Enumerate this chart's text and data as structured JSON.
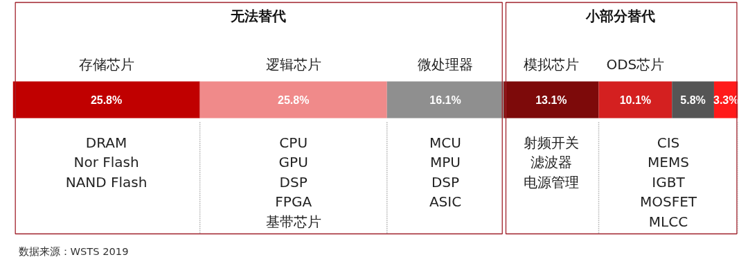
{
  "chart_data": {
    "type": "bar",
    "orientation": "horizontal",
    "stacked": true,
    "categories": [
      null
    ],
    "xlim": [
      0,
      100
    ],
    "tick_labels": false,
    "grid": false,
    "series": [
      {
        "name": "存储芯片",
        "color": "#c00000",
        "values": [
          25.8
        ],
        "value_labels": [
          "25.8%"
        ]
      },
      {
        "name": "逻辑芯片",
        "color": "#f08a8a",
        "values": [
          25.8
        ],
        "value_labels": [
          "25.8%"
        ]
      },
      {
        "name": "微处理器",
        "color": "#8f8f8f",
        "values": [
          16.1
        ],
        "value_labels": [
          "16.1%"
        ]
      },
      {
        "name": "模拟芯片",
        "color": "#7d0a0a",
        "values": [
          13.1
        ],
        "value_labels": [
          "13.1%"
        ]
      },
      {
        "name": "ODS芯片",
        "color": "#d42020",
        "values": [
          10.1
        ],
        "value_labels": [
          "10.1%"
        ]
      },
      {
        "color": "#555555",
        "values": [
          5.8
        ],
        "value_labels": [
          "5.8%"
        ]
      },
      {
        "color": "#ff1a1a",
        "values": [
          3.3
        ],
        "value_labels": [
          "3.3%"
        ]
      }
    ],
    "annotations": [
      "无法替代",
      "小部分替代",
      "DRAM",
      "Nor Flash",
      "NAND Flash",
      "CPU",
      "GPU",
      "DSP",
      "FPGA",
      "基带芯片",
      "MCU",
      "MPU",
      "DSP",
      "ASIC",
      "射频开关",
      "滤波器",
      "电源管理",
      "CIS",
      "MEMS",
      "IGBT",
      "MOSFET",
      "MLCC",
      "数据来源：WSTS 2019"
    ]
  }
}
